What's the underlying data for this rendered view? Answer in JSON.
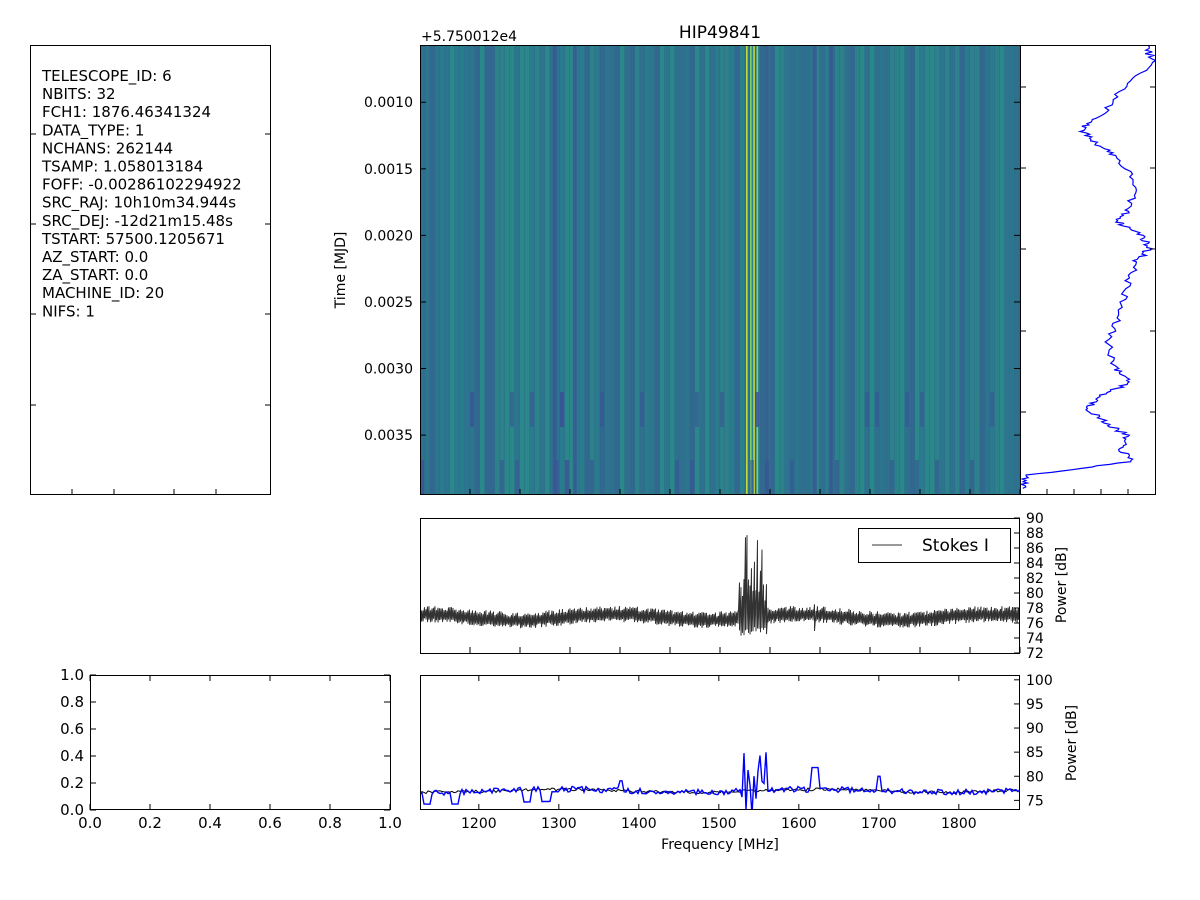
{
  "header": {
    "title": "HIP49841",
    "offset_label": "+5.750012e4"
  },
  "colors": {
    "stokes_line": "#333333",
    "profile_line": "#0000ff",
    "waterfall_base": "#2a7f8d",
    "waterfall_dark": "#3b5296",
    "waterfall_bright": "#c8d93a"
  },
  "header_panel": {
    "lines": [
      "TELESCOPE_ID:  6",
      "NBITS:  32",
      "FCH1:  1876.46341324",
      "DATA_TYPE:  1",
      "NCHANS:  262144",
      "TSAMP:  1.058013184",
      "FOFF:  -0.00286102294922",
      "SRC_RAJ:  10h10m34.944s",
      "SRC_DEJ:  -12d21m15.48s",
      "TSTART:  57500.1205671",
      "AZ_START:  0.0",
      "ZA_START:  0.0",
      "MACHINE_ID:  20",
      "NIFS:  1"
    ]
  },
  "chart_data": [
    {
      "type": "heatmap",
      "title": "HIP49841",
      "ylabel": "Time [MJD]",
      "y_offset_label": "+5.750012e4",
      "y_ticks": [
        0.001,
        0.0015,
        0.002,
        0.0025,
        0.003,
        0.0035
      ],
      "y_tick_labels": [
        "0.0010",
        "0.0015",
        "0.0020",
        "0.0025",
        "0.0030",
        "0.0035"
      ],
      "ylim": [
        0.00057,
        0.00395
      ],
      "xlim": [
        1126.46,
        1876.46
      ],
      "bright_channels_mhz": [
        1535,
        1540,
        1544,
        1548
      ],
      "dark_channels_mhz": [
        1295,
        1320,
        1545,
        1560,
        1620,
        1640
      ]
    },
    {
      "type": "line",
      "description_ref": "time-series profile",
      "xlim": [
        0,
        1
      ],
      "ylim": [
        0.00057,
        0.00395
      ],
      "points_y": [
        0.00057,
        0.0007,
        0.0009,
        0.0011,
        0.0012,
        0.0013,
        0.0014,
        0.0016,
        0.0018,
        0.0019,
        0.002,
        0.0021,
        0.0022,
        0.0024,
        0.0026,
        0.0028,
        0.003,
        0.0031,
        0.0032,
        0.0033,
        0.0034,
        0.0035,
        0.0036,
        0.0037,
        0.0038,
        0.0039
      ],
      "points_x": [
        0.92,
        0.98,
        0.75,
        0.6,
        0.45,
        0.55,
        0.7,
        0.85,
        0.8,
        0.72,
        0.9,
        0.95,
        0.85,
        0.78,
        0.72,
        0.65,
        0.7,
        0.82,
        0.6,
        0.5,
        0.62,
        0.78,
        0.74,
        0.82,
        0.05,
        0.02
      ]
    },
    {
      "type": "line",
      "legend": [
        "Stokes I"
      ],
      "series": [
        {
          "name": "Stokes I"
        }
      ],
      "ylabel": "Power [dB]",
      "ylim": [
        72,
        90
      ],
      "y_ticks": [
        72,
        74,
        76,
        78,
        80,
        82,
        84,
        86,
        88,
        90
      ],
      "xlim": [
        1126.46,
        1876.46
      ],
      "baseline_db": 76.8,
      "spike_regions": [
        {
          "start_mhz": 1525,
          "end_mhz": 1560,
          "peak_db": 89.2
        },
        {
          "start_mhz": 1615,
          "end_mhz": 1625,
          "peak_db": 81.5
        }
      ]
    },
    {
      "type": "line",
      "ylabel": "Power [dB]",
      "xlabel": "Frequency [MHz]",
      "ylim": [
        73,
        101
      ],
      "y_ticks": [
        75,
        80,
        85,
        90,
        95,
        100
      ],
      "x_ticks": [
        1200,
        1300,
        1400,
        1500,
        1600,
        1700,
        1800
      ],
      "xlim": [
        1126.46,
        1876.46
      ],
      "series": [
        {
          "color": "black"
        },
        {
          "color": "blue"
        }
      ]
    },
    {
      "type": "scatter",
      "xlim": [
        0,
        1
      ],
      "ylim": [
        0,
        1
      ],
      "x_ticks": [
        0.0,
        0.2,
        0.4,
        0.6,
        0.8,
        1.0
      ],
      "y_ticks": [
        0.0,
        0.2,
        0.4,
        0.6,
        0.8,
        1.0
      ],
      "x_tick_labels": [
        "0.0",
        "0.2",
        "0.4",
        "0.6",
        "0.8",
        "1.0"
      ],
      "y_tick_labels": [
        "0.0",
        "0.2",
        "0.4",
        "0.6",
        "0.8",
        "1.0"
      ],
      "points": []
    }
  ]
}
